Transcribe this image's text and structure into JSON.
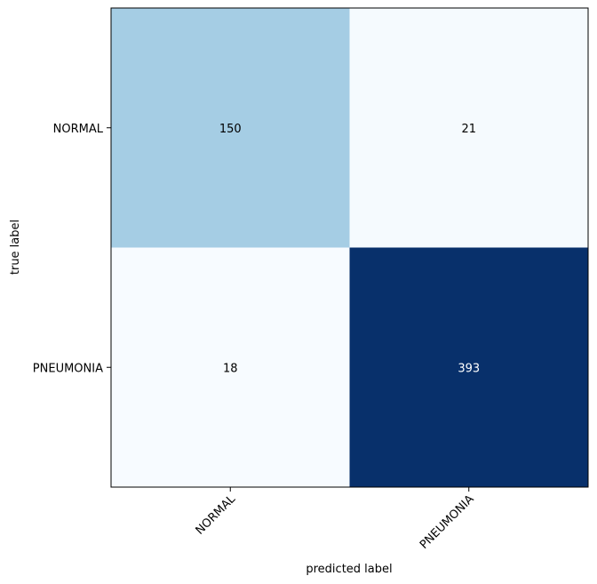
{
  "chart_data": {
    "type": "heatmap",
    "title": "",
    "xlabel": "predicted label",
    "ylabel": "true label",
    "x_categories": [
      "NORMAL",
      "PNEUMONIA"
    ],
    "y_categories": [
      "NORMAL",
      "PNEUMONIA"
    ],
    "values": [
      [
        150,
        21
      ],
      [
        18,
        393
      ]
    ],
    "colormap": "Blues",
    "grid": false,
    "colors": {
      "low": "#f7fbff",
      "mid": "#a6cee4",
      "high": "#08306b",
      "text_dark": "#000000",
      "text_light": "#ffffff"
    }
  }
}
